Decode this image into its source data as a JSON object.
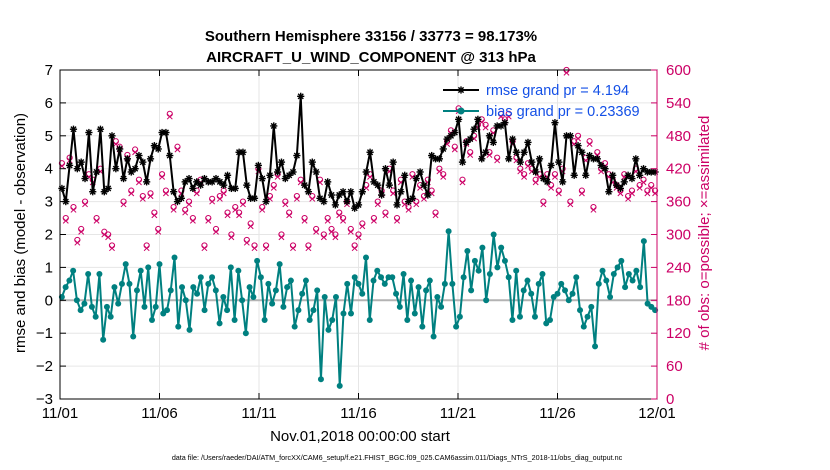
{
  "chart_data": {
    "type": "line",
    "title": "Southern Hemisphere 33156 / 33773 = 98.173%",
    "subtitle": "AIRCRAFT_U_WIND_COMPONENT @ 313 hPa",
    "xlabel": "Nov.01,2018 00:00:00 start",
    "ylabel": "rmse and bias (model - observation)",
    "y2label": "# of obs: o=possible; ×=assimilated",
    "xlim": [
      0,
      30
    ],
    "ylim": [
      -3,
      7
    ],
    "y2lim": [
      0,
      600
    ],
    "grid": true,
    "legend_position": "top-right",
    "x_ticks": [
      {
        "value": 0,
        "label": "11/01"
      },
      {
        "value": 5,
        "label": "11/06"
      },
      {
        "value": 10,
        "label": "11/11"
      },
      {
        "value": 15,
        "label": "11/16"
      },
      {
        "value": 20,
        "label": "11/21"
      },
      {
        "value": 25,
        "label": "11/26"
      },
      {
        "value": 30,
        "label": "12/01"
      }
    ],
    "y_ticks": [
      -3,
      -2,
      -1,
      0,
      1,
      2,
      3,
      4,
      5,
      6,
      7
    ],
    "y2_ticks": [
      0,
      60,
      120,
      180,
      240,
      300,
      360,
      420,
      480,
      540,
      600
    ],
    "series": [
      {
        "name": "rmse",
        "legend": "rmse grand pr = 4.194",
        "color": "#000000",
        "marker": "asterisk",
        "values": [
          3.4,
          3.0,
          4.1,
          5.2,
          4.0,
          4.2,
          3.7,
          5.1,
          3.3,
          3.9,
          5.2,
          3.3,
          3.4,
          5.0,
          4.0,
          4.6,
          3.7,
          4.3,
          3.9,
          4.0,
          4.4,
          4.2,
          3.6,
          4.3,
          4.7,
          4.6,
          5.1,
          5.1,
          4.4,
          3.3,
          3.0,
          3.1,
          3.6,
          3.7,
          3.4,
          3.6,
          3.5,
          3.7,
          3.6,
          3.6,
          3.7,
          3.6,
          3.5,
          3.8,
          3.4,
          3.4,
          4.5,
          4.5,
          3.5,
          3.1,
          3.1,
          4.1,
          3.7,
          3.0,
          3.8,
          5.3,
          3.9,
          4.2,
          3.7,
          3.8,
          3.9,
          4.4,
          6.2,
          3.5,
          3.3,
          4.2,
          3.9,
          3.1,
          3.0,
          3.6,
          3.2,
          2.9,
          3.2,
          3.3,
          3.0,
          3.3,
          2.8,
          2.9,
          3.3,
          3.9,
          4.5,
          3.6,
          3.5,
          3.2,
          4.0,
          3.5,
          4.2,
          2.9,
          3.3,
          3.8,
          3.0,
          3.1,
          3.7,
          3.9,
          3.5,
          3.2,
          4.4,
          4.3,
          4.3,
          4.6,
          4.9,
          5.0,
          5.1,
          5.5,
          4.2,
          4.8,
          4.9,
          5.2,
          5.5,
          4.3,
          4.5,
          5.0,
          4.8,
          5.3,
          5.3,
          5.4,
          4.3,
          4.9,
          4.5,
          4.2,
          4.5,
          4.8,
          4.2,
          3.9,
          4.3,
          3.7,
          3.6,
          4.1,
          5.4,
          4.2,
          3.6,
          5.0,
          5.0,
          3.8,
          4.7,
          4.5,
          3.8,
          4.4,
          4.3,
          4.3,
          4.1,
          4.0,
          3.3,
          3.8,
          3.5,
          3.4,
          3.6,
          3.8,
          3.7,
          4.3,
          3.8,
          4.0,
          3.9,
          3.9,
          3.9
        ]
      },
      {
        "name": "bias",
        "legend": "bias grand pr = 0.23369",
        "color": "#008080",
        "marker": "circle",
        "values": [
          0.1,
          0.4,
          0.6,
          0.9,
          0.0,
          -0.3,
          -0.1,
          0.8,
          -0.2,
          -0.5,
          0.8,
          -1.2,
          -0.2,
          -0.5,
          0.4,
          -0.1,
          0.5,
          1.1,
          0.5,
          -1.1,
          0.3,
          0.9,
          -0.2,
          1.0,
          -0.6,
          -0.2,
          1.1,
          -0.4,
          -0.3,
          0.3,
          1.3,
          -0.8,
          0.4,
          0.0,
          -0.9,
          0.4,
          0.2,
          0.7,
          -0.3,
          0.5,
          0.7,
          0.3,
          -0.7,
          0.1,
          -0.3,
          1.0,
          -0.6,
          0.9,
          0.0,
          -1.0,
          0.4,
          0.1,
          1.2,
          0.7,
          -0.6,
          0.5,
          -0.1,
          0.3,
          1.1,
          -0.2,
          0.4,
          0.6,
          -0.8,
          -0.3,
          0.2,
          0.6,
          -0.6,
          -0.3,
          0.3,
          -2.4,
          0.1,
          -0.9,
          -0.6,
          0.1,
          -2.6,
          -0.4,
          0.5,
          -0.4,
          0.7,
          0.5,
          0.2,
          1.3,
          -0.6,
          0.6,
          0.9,
          0.7,
          0.5,
          0.7,
          0.7,
          0.2,
          -0.2,
          0.8,
          -0.6,
          0.6,
          -0.4,
          0.4,
          -0.8,
          0.3,
          0.6,
          -1.1,
          0.1,
          -0.2,
          0.5,
          2.1,
          0.5,
          -0.8,
          -0.5,
          0.7,
          1.5,
          0.3,
          1.2,
          0.9,
          1.6,
          0.0,
          0.8,
          2.0,
          1.0,
          1.6,
          1.2,
          0.7,
          -0.6,
          0.9,
          -0.5,
          0.3,
          0.6,
          0.2,
          -0.5,
          0.5,
          0.8,
          -0.7,
          -0.6,
          0.1,
          0.2,
          0.5,
          0.3,
          0.0,
          0.2,
          0.7,
          -0.3,
          -0.8,
          -0.5,
          -0.2,
          -1.4,
          0.5,
          0.9,
          0.6,
          0.1,
          0.8,
          1.0,
          1.2,
          0.4,
          0.8,
          0.6,
          0.9,
          0.4,
          1.8,
          -0.1,
          -0.2,
          -0.3
        ]
      }
    ],
    "obs_counts": {
      "axis": "right",
      "color": "#cc0066",
      "possible": [
        430,
        330,
        440,
        350,
        290,
        310,
        360,
        410,
        400,
        330,
        420,
        305,
        300,
        280,
        470,
        460,
        360,
        445,
        380,
        455,
        400,
        370,
        280,
        375,
        340,
        310,
        410,
        380,
        520,
        350,
        460,
        380,
        345,
        360,
        330,
        380,
        400,
        280,
        330,
        365,
        310,
        370,
        380,
        340,
        300,
        350,
        340,
        360,
        290,
        320,
        280,
        420,
        350,
        280,
        370,
        390,
        410,
        300,
        360,
        340,
        280,
        370,
        400,
        330,
        280,
        370,
        310,
        400,
        300,
        330,
        310,
        300,
        340,
        330,
        360,
        310,
        280,
        300,
        320,
        390,
        410,
        330,
        360,
        380,
        340,
        420,
        380,
        330,
        400,
        360,
        350,
        410,
        360,
        390,
        370,
        400,
        380,
        340,
        420,
        410,
        470,
        490,
        460,
        530,
        400,
        470,
        450,
        480,
        500,
        510,
        500,
        450,
        490,
        440,
        520,
        510,
        520,
        470,
        440,
        420,
        410,
        430,
        420,
        400,
        410,
        360,
        410,
        390,
        410,
        380,
        420,
        600,
        360,
        470,
        480,
        380,
        440,
        470,
        350,
        450,
        420,
        430,
        410,
        400,
        390,
        380,
        410,
        370,
        380,
        420,
        390,
        400,
        380,
        390,
        380
      ],
      "assimilated": [
        425,
        325,
        435,
        345,
        285,
        305,
        355,
        405,
        395,
        325,
        415,
        300,
        295,
        275,
        465,
        455,
        355,
        440,
        375,
        450,
        395,
        365,
        275,
        370,
        335,
        305,
        405,
        375,
        515,
        345,
        455,
        375,
        340,
        355,
        325,
        375,
        395,
        275,
        325,
        360,
        305,
        365,
        375,
        335,
        295,
        345,
        335,
        355,
        285,
        315,
        275,
        415,
        345,
        275,
        365,
        385,
        405,
        295,
        355,
        335,
        275,
        365,
        395,
        325,
        275,
        365,
        305,
        395,
        295,
        325,
        305,
        295,
        335,
        325,
        355,
        305,
        275,
        295,
        315,
        385,
        405,
        325,
        355,
        375,
        335,
        415,
        375,
        325,
        395,
        355,
        345,
        405,
        355,
        385,
        365,
        395,
        375,
        335,
        415,
        405,
        465,
        485,
        455,
        525,
        395,
        465,
        445,
        475,
        495,
        505,
        495,
        445,
        485,
        435,
        515,
        505,
        515,
        465,
        435,
        415,
        405,
        425,
        415,
        395,
        405,
        355,
        405,
        385,
        405,
        375,
        415,
        595,
        355,
        465,
        475,
        375,
        435,
        465,
        345,
        445,
        415,
        425,
        405,
        395,
        385,
        375,
        405,
        365,
        375,
        415,
        385,
        395,
        375,
        385,
        375
      ]
    }
  },
  "footer": {
    "data_file": "data file: /Users/raeder/DAI/ATM_forcXX/CAM6_setup/f.e21.FHIST_BGC.f09_025.CAM6assim.011/Diags_NTrS_2018-11/obs_diag_output.nc"
  }
}
